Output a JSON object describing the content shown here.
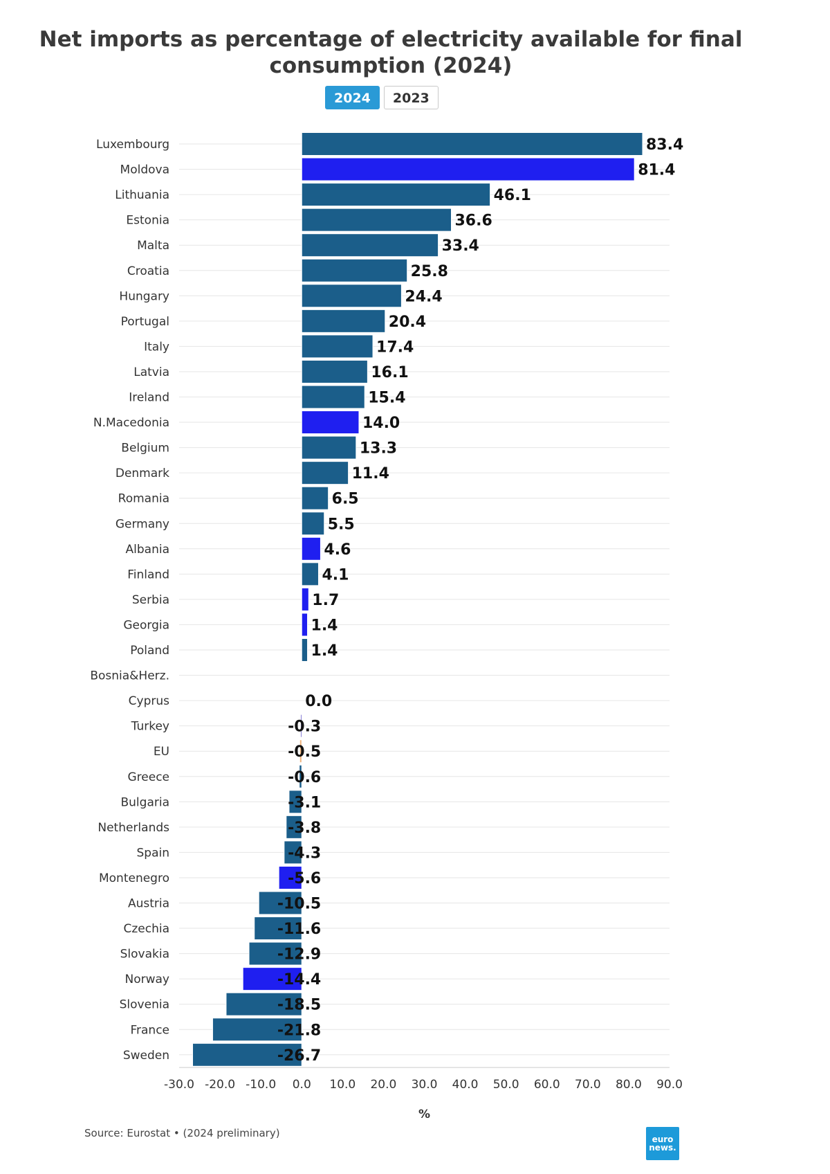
{
  "chart_data": {
    "type": "bar",
    "orientation": "horizontal",
    "title": "Net imports as percentage of electricity available for final consumption (2024)",
    "xlabel": "%",
    "xlim": [
      -30,
      90
    ],
    "xticks": [
      -30,
      -20,
      -10,
      0,
      10,
      20,
      30,
      40,
      50,
      60,
      70,
      80,
      90
    ],
    "categories": [
      "Luxembourg",
      "Moldova",
      "Lithuania",
      "Estonia",
      "Malta",
      "Croatia",
      "Hungary",
      "Portugal",
      "Italy",
      "Latvia",
      "Ireland",
      "N.Macedonia",
      "Belgium",
      "Denmark",
      "Romania",
      "Germany",
      "Albania",
      "Finland",
      "Serbia",
      "Georgia",
      "Poland",
      "Bosnia&Herz.",
      "Cyprus",
      "Turkey",
      "EU",
      "Greece",
      "Bulgaria",
      "Netherlands",
      "Spain",
      "Montenegro",
      "Austria",
      "Czechia",
      "Slovakia",
      "Norway",
      "Slovenia",
      "France",
      "Sweden"
    ],
    "values": [
      83.4,
      81.4,
      46.1,
      36.6,
      33.4,
      25.8,
      24.4,
      20.4,
      17.4,
      16.1,
      15.4,
      14.0,
      13.3,
      11.4,
      6.5,
      5.5,
      4.6,
      4.1,
      1.7,
      1.4,
      1.4,
      null,
      0.0,
      -0.3,
      -0.5,
      -0.6,
      -3.1,
      -3.8,
      -4.3,
      -5.6,
      -10.5,
      -11.6,
      -12.9,
      -14.4,
      -18.5,
      -21.8,
      -26.7
    ],
    "groups": [
      "eu",
      "non_eu",
      "eu",
      "eu",
      "eu",
      "eu",
      "eu",
      "eu",
      "eu",
      "eu",
      "eu",
      "non_eu",
      "eu",
      "eu",
      "eu",
      "eu",
      "non_eu",
      "eu",
      "non_eu",
      "non_eu",
      "eu",
      "non_eu",
      "eu",
      "turkey",
      "eu_total",
      "eu",
      "eu",
      "eu",
      "eu",
      "non_eu",
      "eu",
      "eu",
      "eu",
      "non_eu",
      "eu",
      "eu",
      "eu"
    ],
    "colors": {
      "eu": "#1b5e8a",
      "non_eu": "#1f1ff0",
      "turkey": "#8a7fd6",
      "eu_total": "#f0b27a"
    },
    "grid": true
  },
  "tabs": [
    {
      "label": "2024",
      "active": true
    },
    {
      "label": "2023",
      "active": false
    }
  ],
  "source": "Source: Eurostat • (2024 preliminary)",
  "logo": {
    "line1": "euro",
    "line2": "news."
  }
}
